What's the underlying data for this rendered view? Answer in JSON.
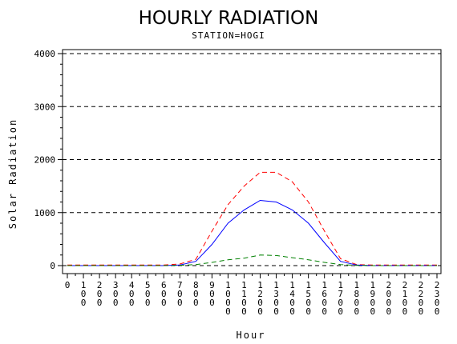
{
  "chart_data": {
    "type": "line",
    "title": "HOURLY RADIATION",
    "subtitle": "STATION=HOGI",
    "xlabel": "Hour",
    "ylabel": "Solar Radiation",
    "xlim": [
      0,
      2300
    ],
    "ylim": [
      0,
      4000
    ],
    "y_ticks": [
      0,
      1000,
      2000,
      3000,
      4000
    ],
    "y_tick_labels": [
      "0",
      "1000",
      "2000",
      "3000",
      "4000"
    ],
    "gridlines_y": [
      0,
      1000,
      2000,
      3000,
      4000
    ],
    "x_tick_labels": [
      "0",
      "100",
      "200",
      "300",
      "400",
      "500",
      "600",
      "700",
      "800",
      "900",
      "1000",
      "1100",
      "1200",
      "1300",
      "1400",
      "1500",
      "1600",
      "1700",
      "1800",
      "1900",
      "2000",
      "2100",
      "2200",
      "2300"
    ],
    "x": [
      0,
      100,
      200,
      300,
      400,
      500,
      600,
      700,
      800,
      900,
      1000,
      1100,
      1200,
      1300,
      1400,
      1500,
      1600,
      1700,
      1800,
      1900,
      2000,
      2100,
      2200,
      2300
    ],
    "series": [
      {
        "color": "#ff0000",
        "style": "dashed",
        "values": [
          10,
          10,
          10,
          10,
          10,
          10,
          10,
          30,
          120,
          650,
          1150,
          1500,
          1760,
          1760,
          1580,
          1200,
          650,
          130,
          20,
          10,
          10,
          10,
          10,
          10
        ]
      },
      {
        "color": "#0000ff",
        "style": "solid",
        "values": [
          0,
          0,
          0,
          0,
          0,
          0,
          0,
          10,
          80,
          400,
          800,
          1050,
          1230,
          1200,
          1050,
          800,
          430,
          80,
          10,
          0,
          0,
          0,
          0,
          0
        ]
      },
      {
        "color": "#008000",
        "style": "dashed",
        "values": [
          0,
          0,
          0,
          0,
          0,
          0,
          0,
          5,
          20,
          60,
          110,
          140,
          200,
          190,
          150,
          110,
          60,
          20,
          5,
          0,
          0,
          0,
          0,
          0
        ]
      }
    ]
  }
}
